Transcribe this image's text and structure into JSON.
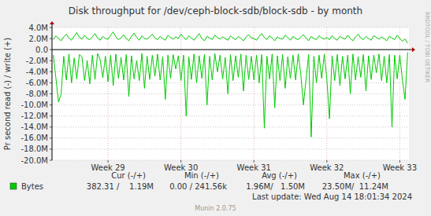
{
  "chart_data": {
    "type": "line",
    "title": "Disk throughput for /dev/ceph-block-sdb/block-sdb - by month",
    "y_label": "Pr second read (-) / write (+)",
    "categories": [
      null,
      null,
      null,
      null,
      null,
      null,
      null,
      null,
      null,
      null,
      null,
      null,
      null,
      null,
      null,
      null,
      null,
      null,
      null,
      null,
      null,
      "Week 29",
      null,
      null,
      null,
      null,
      null,
      null,
      null,
      null,
      null,
      null,
      null,
      null,
      null,
      null,
      null,
      null,
      null,
      null,
      null,
      null,
      null,
      null,
      null,
      null,
      null,
      null,
      null,
      "Week 30",
      null,
      null,
      null,
      null,
      null,
      null,
      null,
      null,
      null,
      null,
      null,
      null,
      null,
      null,
      null,
      null,
      null,
      null,
      null,
      null,
      null,
      null,
      null,
      null,
      null,
      null,
      null,
      "Week 31",
      null,
      null,
      null,
      null,
      null,
      null,
      null,
      null,
      null,
      null,
      null,
      null,
      null,
      null,
      null,
      null,
      null,
      null,
      null,
      null,
      null,
      null,
      null,
      null,
      null,
      null,
      null,
      "Week 32",
      null,
      null,
      null,
      null,
      null,
      null,
      null,
      null,
      null,
      null,
      null,
      null,
      null,
      null,
      null,
      null,
      null,
      null,
      null,
      null,
      null,
      null,
      null,
      null,
      null,
      null,
      null,
      "Week 33",
      null,
      null,
      null
    ],
    "series": [
      {
        "name": "Bytes",
        "color": "#00cc00",
        "values": [
          1800000.0,
          2500000.0,
          2000000.0,
          1600000.0,
          2300000.0,
          2800000.0,
          2100000.0,
          1700000.0,
          2400000.0,
          3100000.0,
          2200000.0,
          1900000.0,
          2600000.0,
          2000000.0,
          1800000.0,
          2300000.0,
          2900000.0,
          2100000.0,
          1700000.0,
          2400000.0,
          2000000.0,
          1900000.0,
          2600000.0,
          3200000.0,
          2300000.0,
          1800000.0,
          2100000.0,
          2700000.0,
          2000000.0,
          1600000.0,
          2400000.0,
          3000000.0,
          2200000.0,
          1700000.0,
          2500000.0,
          2000000.0,
          1900000.0,
          2300000.0,
          2800000.0,
          2100000.0,
          1800000.0,
          2400000.0,
          2000000.0,
          1700000.0,
          2600000.0,
          2200000.0,
          1900000.0,
          2300000.0,
          2000000.0,
          2800000.0,
          2200000.0,
          1800000.0,
          2500000.0,
          2100000.0,
          1700000.0,
          2300000.0,
          2900000.0,
          2000000.0,
          1600000.0,
          2400000.0,
          2100000.0,
          1800000.0,
          2600000.0,
          2200000.0,
          1900000.0,
          2300000.0,
          2000000.0,
          1700000.0,
          2500000.0,
          2100000.0,
          1800000.0,
          2400000.0,
          2000000.0,
          1600000.0,
          2300000.0,
          2700000.0,
          2100000.0,
          2000000.0,
          1700000.0,
          2400000.0,
          2900000.0,
          2200000.0,
          1800000.0,
          2500000.0,
          2100000.0,
          1600000.0,
          2300000.0,
          2000000.0,
          1900000.0,
          2600000.0,
          2200000.0,
          1700000.0,
          2400000.0,
          2000000.0,
          1800000.0,
          2300000.0,
          2700000.0,
          2100000.0,
          1600000.0,
          2400000.0,
          2000000.0,
          1800000.0,
          2500000.0,
          2100000.0,
          1900000.0,
          2200000.0,
          1800000.0,
          2500000.0,
          2000000.0,
          1700000.0,
          2400000.0,
          2100000.0,
          1900000.0,
          2600000.0,
          2000000.0,
          1600000.0,
          2300000.0,
          2800000.0,
          2100000.0,
          1800000.0,
          2400000.0,
          2000000.0,
          1700000.0,
          2500000.0,
          2200000.0,
          1900000.0,
          2300000.0,
          2000000.0,
          1600000.0,
          2400000.0,
          2100000.0,
          1800000.0,
          2600000.0,
          2000000.0,
          1500000.0,
          1900000.0,
          1200000.0
        ]
      },
      {
        "color": "#00cc00",
        "values": [
          -1000000.0,
          -5200000.0,
          -9500000.0,
          -8000000.0,
          -1200000.0,
          -5500000.0,
          -800000.0,
          -6000000.0,
          -1500000.0,
          -5300000.0,
          -900000.0,
          -1300000.0,
          -5600000.0,
          -2000000.0,
          -6200000.0,
          -1000000.0,
          -5400000.0,
          -700000.0,
          -1800000.0,
          -5100000.0,
          -1200000.0,
          -5800000.0,
          -1000000.0,
          -6500000.0,
          -800000.0,
          -5200000.0,
          -1400000.0,
          -5500000.0,
          -900000.0,
          -8500000.0,
          -1100000.0,
          -5300000.0,
          -2000000.0,
          -5600000.0,
          -700000.0,
          -7000000.0,
          -1200000.0,
          -5400000.0,
          -1000000.0,
          -4800000.0,
          -800000.0,
          -5500000.0,
          -1300000.0,
          -9000000.0,
          -1000000.0,
          -5200000.0,
          -900000.0,
          -3500000.0,
          -1100000.0,
          -5600000.0,
          -1000000.0,
          -12000000.0,
          -1300000.0,
          -5400000.0,
          -800000.0,
          -6000000.0,
          -1100000.0,
          -5200000.0,
          -900000.0,
          -10000000.0,
          -1200000.0,
          -5500000.0,
          -700000.0,
          -4000000.0,
          -1000000.0,
          -5300000.0,
          -1400000.0,
          -8000000.0,
          -900000.0,
          -5600000.0,
          -1100000.0,
          -5000000.0,
          -800000.0,
          -7500000.0,
          -1000000.0,
          -5400000.0,
          -1200000.0,
          -5500000.0,
          -1000000.0,
          -6000000.0,
          -900000.0,
          -14200000.0,
          -1200000.0,
          -5300000.0,
          -800000.0,
          -10500000.0,
          -1100000.0,
          -5600000.0,
          -900000.0,
          -7000000.0,
          -1300000.0,
          -5200000.0,
          -1000000.0,
          -5500000.0,
          -800000.0,
          -4500000.0,
          -10000000.0,
          -5400000.0,
          -900000.0,
          -15800000.0,
          -1200000.0,
          -6000000.0,
          -1000000.0,
          -5200000.0,
          -800000.0,
          -5400000.0,
          -12500000.0,
          -1100000.0,
          -5600000.0,
          -900000.0,
          -6500000.0,
          -1200000.0,
          -5300000.0,
          -1000000.0,
          -8000000.0,
          -800000.0,
          -5500000.0,
          -1300000.0,
          -5000000.0,
          -900000.0,
          -7500000.0,
          -1100000.0,
          -5400000.0,
          -1000000.0,
          -4200000.0,
          -800000.0,
          -5600000.0,
          -1200000.0,
          -6000000.0,
          -900000.0,
          -14000000.0,
          -1000000.0,
          -5300000.0,
          -1000000.0,
          -5500000.0,
          -9000000.0,
          -500000.0
        ]
      }
    ],
    "ylim": [
      -20000000,
      4000000
    ],
    "yticks": [
      {
        "value": 4000000,
        "label": "4.0M"
      },
      {
        "value": 2000000,
        "label": "2.0M"
      },
      {
        "value": 0,
        "label": "0.0"
      },
      {
        "value": -2000000,
        "label": "-2.0M"
      },
      {
        "value": -4000000,
        "label": "-4.0M"
      },
      {
        "value": -6000000,
        "label": "-6.0M"
      },
      {
        "value": -8000000,
        "label": "-8.0M"
      },
      {
        "value": -10000000,
        "label": "-10.0M"
      },
      {
        "value": -12000000,
        "label": "-12.0M"
      },
      {
        "value": -14000000,
        "label": "-14.0M"
      },
      {
        "value": -16000000,
        "label": "-16.0M"
      },
      {
        "value": -18000000,
        "label": "-18.0M"
      },
      {
        "value": -20000000,
        "label": "-20.0M"
      }
    ],
    "grid": true,
    "legend": "bottom",
    "legend_table": {
      "headers": [
        "Cur (-/+)",
        "Min (-/+)",
        "Avg (-/+)",
        "Max (-/+)"
      ],
      "values": [
        "382.31 /    1.19M",
        "0.00 / 241.56k",
        "1.96M/   1.50M",
        "23.50M/  11.24M"
      ]
    },
    "last_update": "Last update: Wed Aug 14 18:01:34 2024",
    "footer": "Munin 2.0.75",
    "watermark": "RRDTOOL / TOBI OETIKER"
  }
}
